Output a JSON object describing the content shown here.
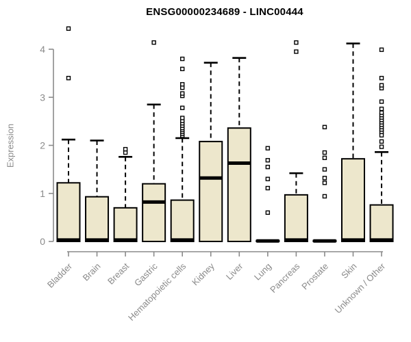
{
  "chart_data": {
    "type": "box",
    "title": "ENSG00000234689 - LINC00444",
    "ylabel": "Expression",
    "xlabel": "",
    "ylim": [
      0,
      4
    ],
    "y_ticks": [
      0,
      1,
      2,
      3,
      4
    ],
    "grid": false,
    "legend": false,
    "colors": {
      "box_fill": "#EDE7CC",
      "box_border": "#000000",
      "median": "#000000",
      "whisker": "#000000",
      "outlier_stroke": "#000000",
      "outlier_fill": "#ffffff",
      "axis": "#8a8a8a",
      "tick_label": "#8a8a8a",
      "title": "#000000",
      "background": "#ffffff"
    },
    "categories": [
      "Bladder",
      "Brain",
      "Breast",
      "Gastric",
      "Hematopoietic cells",
      "Kidney",
      "Liver",
      "Lung",
      "Pancreas",
      "Prostate",
      "Skin",
      "Unknown / Other"
    ],
    "series": [
      {
        "name": "Bladder",
        "q1": 0,
        "median": 0.03,
        "q3": 1.22,
        "whisker_low": 0,
        "whisker_high": 2.12,
        "outliers": [
          3.4,
          4.43
        ]
      },
      {
        "name": "Brain",
        "q1": 0,
        "median": 0.03,
        "q3": 0.93,
        "whisker_low": 0,
        "whisker_high": 2.1,
        "outliers": []
      },
      {
        "name": "Breast",
        "q1": 0,
        "median": 0.03,
        "q3": 0.7,
        "whisker_low": 0,
        "whisker_high": 1.76,
        "outliers": [
          1.85,
          1.92
        ]
      },
      {
        "name": "Gastric",
        "q1": 0,
        "median": 0.82,
        "q3": 1.2,
        "whisker_low": 0,
        "whisker_high": 2.85,
        "outliers": [
          4.14
        ]
      },
      {
        "name": "Hematopoietic cells",
        "q1": 0,
        "median": 0.03,
        "q3": 0.86,
        "whisker_low": 0,
        "whisker_high": 2.15,
        "outliers": [
          2.2,
          2.24,
          2.28,
          2.32,
          2.36,
          2.41,
          2.46,
          2.51,
          2.57,
          2.78,
          3.03,
          3.08,
          3.2,
          3.27,
          3.59,
          3.8
        ]
      },
      {
        "name": "Kidney",
        "q1": 0,
        "median": 1.32,
        "q3": 2.08,
        "whisker_low": 0,
        "whisker_high": 3.72,
        "outliers": []
      },
      {
        "name": "Liver",
        "q1": 0,
        "median": 1.63,
        "q3": 2.36,
        "whisker_low": 0,
        "whisker_high": 3.82,
        "outliers": []
      },
      {
        "name": "Lung",
        "q1": 0,
        "median": 0.01,
        "q3": 0.02,
        "whisker_low": 0,
        "whisker_high": 0.02,
        "outliers": [
          0.6,
          1.11,
          1.3,
          1.55,
          1.69,
          1.94
        ]
      },
      {
        "name": "Pancreas",
        "q1": 0,
        "median": 0.03,
        "q3": 0.97,
        "whisker_low": 0,
        "whisker_high": 1.42,
        "outliers": [
          3.95,
          4.14
        ]
      },
      {
        "name": "Prostate",
        "q1": 0,
        "median": 0.01,
        "q3": 0.02,
        "whisker_low": 0,
        "whisker_high": 0.02,
        "outliers": [
          0.94,
          1.22,
          1.32,
          1.5,
          1.74,
          1.85,
          2.38
        ]
      },
      {
        "name": "Skin",
        "q1": 0,
        "median": 0.03,
        "q3": 1.72,
        "whisker_low": 0,
        "whisker_high": 4.12,
        "outliers": []
      },
      {
        "name": "Unknown / Other",
        "q1": 0,
        "median": 0.03,
        "q3": 0.76,
        "whisker_low": 0,
        "whisker_high": 1.86,
        "outliers": [
          1.97,
          2.08,
          2.21,
          2.28,
          2.33,
          2.38,
          2.43,
          2.48,
          2.53,
          2.58,
          2.63,
          2.68,
          2.76,
          2.91,
          3.19,
          3.25,
          3.4,
          3.99
        ]
      }
    ]
  }
}
